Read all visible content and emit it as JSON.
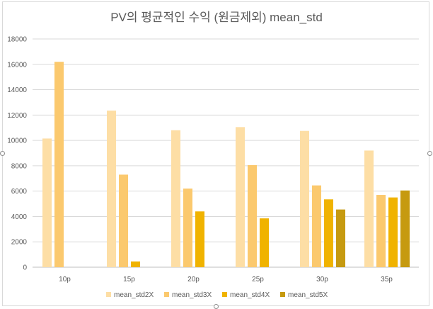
{
  "chart_data": {
    "type": "bar",
    "title": "PV의 평균적인 수익 (원금제외) mean_std",
    "xlabel": "",
    "ylabel": "",
    "ylim": [
      0,
      18000
    ],
    "y_ticks": [
      0,
      2000,
      4000,
      6000,
      8000,
      10000,
      12000,
      14000,
      16000,
      18000
    ],
    "grid": true,
    "legend_position": "bottom",
    "categories": [
      "10p",
      "15p",
      "20p",
      "25p",
      "30p",
      "35p"
    ],
    "series": [
      {
        "name": "mean_std2X",
        "color": "#fddea5",
        "values": [
          10150,
          12350,
          10800,
          11050,
          10750,
          9200
        ]
      },
      {
        "name": "mean_std3X",
        "color": "#fbc96e",
        "values": [
          16200,
          7300,
          6200,
          8050,
          6450,
          5700
        ]
      },
      {
        "name": "mean_std4X",
        "color": "#f0b300",
        "values": [
          0,
          450,
          4400,
          3850,
          5350,
          5500
        ]
      },
      {
        "name": "mean_std5X",
        "color": "#c69a10",
        "values": [
          0,
          0,
          0,
          0,
          4550,
          6050
        ]
      }
    ]
  }
}
